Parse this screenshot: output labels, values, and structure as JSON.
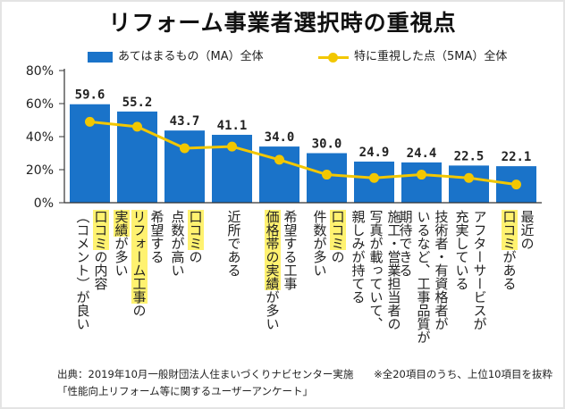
{
  "chart_data": {
    "type": "bar",
    "title": "リフォーム事業者選択時の重視点",
    "series": [
      {
        "name": "あてはまるもの（MA）全体",
        "kind": "bar",
        "color": "#1a73c9",
        "values": [
          59.6,
          55.2,
          43.7,
          41.1,
          34.0,
          30.0,
          24.9,
          24.4,
          22.5,
          22.1
        ],
        "labels": [
          "59.6",
          "55.2",
          "43.7",
          "41.1",
          "34.0",
          "30.0",
          "24.9",
          "24.4",
          "22.5",
          "22.1"
        ]
      },
      {
        "name": "特に重視した点（5MA）全体",
        "kind": "line",
        "color": "#f2c700",
        "values": [
          49,
          46,
          33,
          34,
          26,
          17,
          15,
          17,
          15,
          11
        ]
      }
    ],
    "categories": [
      {
        "segments": [
          {
            "text": "口コミ",
            "hl": true
          },
          {
            "text": "の内容",
            "hl": false
          },
          {
            "text": "\n",
            "hl": false
          },
          {
            "text": "（コメント）が良い",
            "hl": false
          }
        ]
      },
      {
        "segments": [
          {
            "text": "希望する",
            "hl": false
          },
          {
            "text": "\n",
            "hl": false
          },
          {
            "text": "リフォーム工事",
            "hl": true
          },
          {
            "text": "の",
            "hl": false
          },
          {
            "text": "\n",
            "hl": false
          },
          {
            "text": "実績",
            "hl": true
          },
          {
            "text": "が多い",
            "hl": false
          }
        ]
      },
      {
        "segments": [
          {
            "text": "口コミ",
            "hl": true
          },
          {
            "text": "の",
            "hl": false
          },
          {
            "text": "\n",
            "hl": false
          },
          {
            "text": "点数が高い",
            "hl": false
          }
        ]
      },
      {
        "segments": [
          {
            "text": "近所である",
            "hl": false
          }
        ]
      },
      {
        "segments": [
          {
            "text": "希望する工事",
            "hl": false
          },
          {
            "text": "\n",
            "hl": false
          },
          {
            "text": "価格帯の実績",
            "hl": true
          },
          {
            "text": "が多い",
            "hl": false
          }
        ]
      },
      {
        "segments": [
          {
            "text": "口コミ",
            "hl": true
          },
          {
            "text": "の",
            "hl": false
          },
          {
            "text": "\n",
            "hl": false
          },
          {
            "text": "件数が多い",
            "hl": false
          }
        ]
      },
      {
        "segments": [
          {
            "text": "施工・営業担当者の",
            "hl": false
          },
          {
            "text": "\n",
            "hl": false
          },
          {
            "text": "写真が載っていて、",
            "hl": false
          },
          {
            "text": "\n",
            "hl": false
          },
          {
            "text": "親しみが持てる",
            "hl": false
          }
        ]
      },
      {
        "segments": [
          {
            "text": "技術者・有資格者が",
            "hl": false
          },
          {
            "text": "\n",
            "hl": false
          },
          {
            "text": "いるなど、工事品質が",
            "hl": false
          },
          {
            "text": "\n",
            "hl": false
          },
          {
            "text": "期待できる",
            "hl": false
          }
        ]
      },
      {
        "segments": [
          {
            "text": "アフターサービスが",
            "hl": false
          },
          {
            "text": "\n",
            "hl": false
          },
          {
            "text": "充実している",
            "hl": false
          }
        ]
      },
      {
        "segments": [
          {
            "text": "最近の",
            "hl": false
          },
          {
            "text": "\n",
            "hl": false
          },
          {
            "text": "口コミ",
            "hl": true
          },
          {
            "text": "がある",
            "hl": false
          }
        ]
      }
    ],
    "yticks": [
      "0%",
      "20%",
      "40%",
      "60%",
      "80%"
    ],
    "ylim": [
      0,
      80
    ],
    "grid": false,
    "legend": "top"
  },
  "source": {
    "line1": "出典：2019年10月一般財団法人住まいづくりナビセンター実施",
    "line2": "「性能向上リフォーム等に関するユーザーアンケート」",
    "note": "※全20項目のうち、上位10項目を抜粋"
  }
}
